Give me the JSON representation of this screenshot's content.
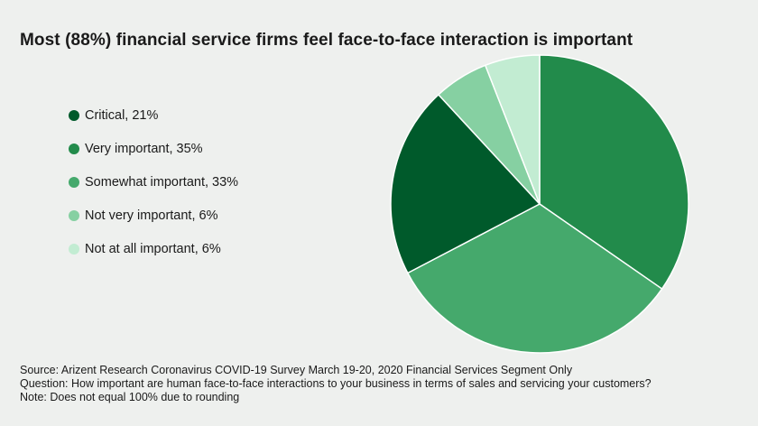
{
  "chart_data": {
    "type": "pie",
    "title": "Most (88%) financial service firms feel face-to-face interaction is important",
    "legend_position": "left",
    "slices": [
      {
        "label": "Critical, 21%",
        "name": "Critical",
        "value": 21,
        "color": "#005a2b"
      },
      {
        "label": "Very important, 35%",
        "name": "Very important",
        "value": 35,
        "color": "#228b4b"
      },
      {
        "label": "Somewhat important, 33%",
        "name": "Somewhat important",
        "value": 33,
        "color": "#45a96c"
      },
      {
        "label": "Not very important, 6%",
        "name": "Not very important",
        "value": 6,
        "color": "#86d0a2"
      },
      {
        "label": "Not at all important, 6%",
        "name": "Not at all important",
        "value": 6,
        "color": "#c2ecd2"
      }
    ]
  },
  "footer": {
    "source": "Source: Arizent Research Coronavirus COVID-19 Survey March 19-20, 2020 Financial Services Segment Only",
    "question": "Question: How important are human face-to-face interactions to your business in terms of sales and servicing your customers?",
    "note": "Note: Does not equal 100% due to rounding"
  }
}
